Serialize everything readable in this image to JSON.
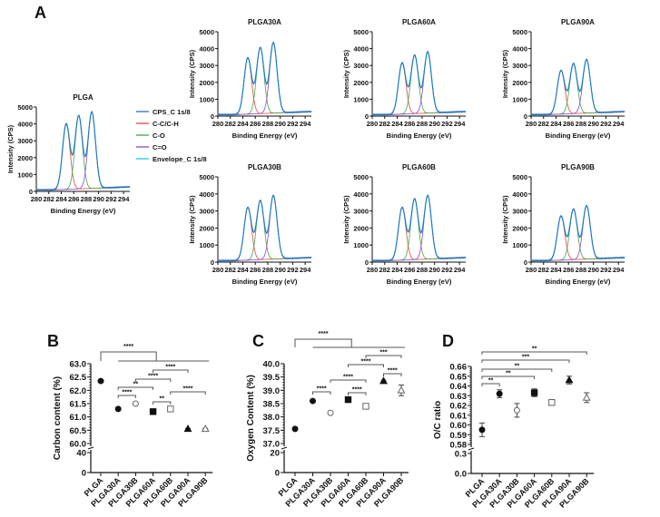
{
  "panel_labels": {
    "a": "A",
    "b": "B",
    "c": "C",
    "d": "D"
  },
  "chart_data": [
    {
      "type": "line",
      "panel": "A",
      "xlabel": "Binding Energy (eV)",
      "ylabel": "Intensity (CPS)",
      "xticks": [
        "280",
        "282",
        "284",
        "286",
        "288",
        "290",
        "292",
        "294"
      ],
      "yticks": [
        "0",
        "1000",
        "2000",
        "3000",
        "4000",
        "5000"
      ],
      "xlim": [
        280,
        295
      ],
      "ylim": [
        0,
        5000
      ],
      "peak_positions_eV": [
        284.8,
        286.8,
        288.9
      ],
      "legend": [
        "CPS_C 1s/8",
        "C-C/C-H",
        "C-O",
        "C=O",
        "Envelope_C 1s/8"
      ],
      "legend_colors": [
        "#2f6fb5",
        "#e0463f",
        "#43a447",
        "#8e44c4",
        "#17c8f5"
      ],
      "samples": [
        {
          "title": "PLGA",
          "peaks": [
            4000,
            4480,
            4700
          ]
        },
        {
          "title": "PLGA30A",
          "peaks": [
            3450,
            4050,
            4350
          ]
        },
        {
          "title": "PLGA60A",
          "peaks": [
            3150,
            3600,
            3800
          ]
        },
        {
          "title": "PLGA90A",
          "peaks": [
            2700,
            3100,
            3350
          ]
        },
        {
          "title": "PLGA30B",
          "peaks": [
            3200,
            3600,
            3900
          ]
        },
        {
          "title": "PLGA60B",
          "peaks": [
            3200,
            3700,
            3900
          ]
        },
        {
          "title": "PLGA90B",
          "peaks": [
            2700,
            3100,
            3300
          ]
        }
      ]
    },
    {
      "type": "scatter",
      "panel": "B",
      "ylabel": "Carbon content (%)",
      "categories": [
        "PLGA",
        "PLGA30A",
        "PLGA30B",
        "PLGA60A",
        "PLGA60B",
        "PLGA90A",
        "PLGA90B"
      ],
      "values": [
        62.35,
        61.3,
        61.5,
        61.2,
        61.3,
        60.55,
        60.55
      ],
      "errors": [
        0.02,
        0.02,
        0.03,
        0.03,
        0.03,
        0.02,
        0.02
      ],
      "ylim_upper": [
        60.0,
        63.0
      ],
      "yticks_upper": [
        "60.0",
        "60.5",
        "61.0",
        "61.5",
        "62.0",
        "62.5",
        "63.0"
      ],
      "yticks_lower": [
        "0",
        "40"
      ],
      "group_sig": "****",
      "significance": [
        {
          "from": 3,
          "to": 5,
          "label": "****"
        },
        {
          "from": 2,
          "to": 4,
          "label": "****"
        },
        {
          "from": 1,
          "to": 3,
          "label": "**"
        },
        {
          "from": 4,
          "to": 6,
          "label": "****"
        },
        {
          "from": 1,
          "to": 2,
          "label": "****"
        },
        {
          "from": 3,
          "to": 4,
          "label": "**"
        }
      ]
    },
    {
      "type": "scatter",
      "panel": "C",
      "ylabel": "Oxygen Content (%)",
      "categories": [
        "PLGA",
        "PLGA30A",
        "PLGA30B",
        "PLGA60A",
        "PLGA60B",
        "PLGA90A",
        "PLGA90B"
      ],
      "values": [
        37.55,
        38.6,
        38.15,
        38.65,
        38.4,
        39.35,
        39.0
      ],
      "errors": [
        0.02,
        0.03,
        0.04,
        0.05,
        0.06,
        0.03,
        0.2
      ],
      "ylim_upper": [
        37.0,
        40.0
      ],
      "yticks_upper": [
        "37.0",
        "37.5",
        "38.0",
        "38.5",
        "39.0",
        "39.5",
        "40.0"
      ],
      "yticks_lower": [
        "0",
        "20"
      ],
      "group_sig": "****",
      "significance": [
        {
          "from": 4,
          "to": 6,
          "label": "***"
        },
        {
          "from": 3,
          "to": 5,
          "label": "****"
        },
        {
          "from": 5,
          "to": 6,
          "label": "****"
        },
        {
          "from": 2,
          "to": 4,
          "label": "****"
        },
        {
          "from": 1,
          "to": 2,
          "label": "****"
        },
        {
          "from": 3,
          "to": 4,
          "label": "****"
        }
      ]
    },
    {
      "type": "scatter",
      "panel": "D",
      "ylabel": "O/C ratio",
      "categories": [
        "PLGA",
        "PLGA30A",
        "PLGA30B",
        "PLGA60A",
        "PLGA60B",
        "PLGA90A",
        "PLGA90B"
      ],
      "values": [
        0.595,
        0.632,
        0.615,
        0.633,
        0.623,
        0.646,
        0.628
      ],
      "errors": [
        0.007,
        0.004,
        0.007,
        0.004,
        0.003,
        0.004,
        0.005
      ],
      "ylim_upper": [
        0.58,
        0.66
      ],
      "yticks_upper": [
        "0.58",
        "0.59",
        "0.60",
        "0.61",
        "0.62",
        "0.63",
        "0.64",
        "0.65",
        "0.66"
      ],
      "yticks_lower": [
        "0.0",
        "0.3"
      ],
      "group_sig": "",
      "significance": [
        {
          "from": 0,
          "to": 6,
          "label": "**"
        },
        {
          "from": 0,
          "to": 5,
          "label": "***"
        },
        {
          "from": 0,
          "to": 4,
          "label": "**"
        },
        {
          "from": 0,
          "to": 3,
          "label": "**"
        },
        {
          "from": 0,
          "to": 1,
          "label": "**"
        }
      ]
    }
  ]
}
